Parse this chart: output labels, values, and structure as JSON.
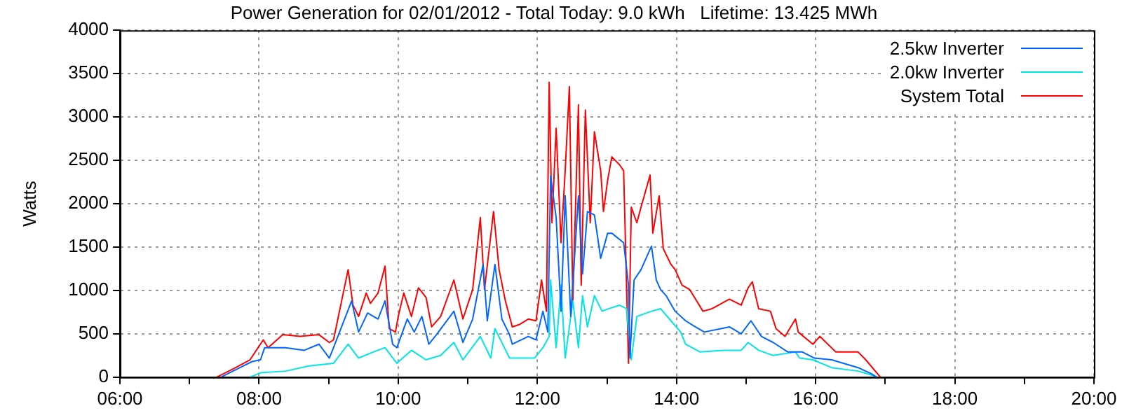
{
  "chart_data": {
    "type": "line",
    "title": "Power Generation for 02/01/2012 - Total Today: 9.0 kWh   Lifetime: 13.425 MWh",
    "ylabel": "Watts",
    "xlim": [
      6,
      20
    ],
    "xticks": [
      {
        "value": 6,
        "label": "06:00"
      },
      {
        "value": 7,
        "label": null
      },
      {
        "value": 8,
        "label": "08:00"
      },
      {
        "value": 9,
        "label": null
      },
      {
        "value": 10,
        "label": "10:00"
      },
      {
        "value": 11,
        "label": null
      },
      {
        "value": 12,
        "label": "12:00"
      },
      {
        "value": 13,
        "label": null
      },
      {
        "value": 14,
        "label": "14:00"
      },
      {
        "value": 15,
        "label": null
      },
      {
        "value": 16,
        "label": "16:00"
      },
      {
        "value": 17,
        "label": null
      },
      {
        "value": 18,
        "label": "18:00"
      },
      {
        "value": 19,
        "label": null
      },
      {
        "value": 20,
        "label": "20:00"
      }
    ],
    "ylim": [
      0,
      4000
    ],
    "yticks": [
      0,
      500,
      1000,
      1500,
      2000,
      2500,
      3000,
      3500,
      4000
    ],
    "grid": true,
    "legend": "top right",
    "series": [
      {
        "name": "2.5kw Inverter",
        "color": "#0066ff",
        "x": [
          7.45,
          7.7,
          7.9,
          8.02,
          8.08,
          8.38,
          8.65,
          8.86,
          9.01,
          9.07,
          9.33,
          9.43,
          9.56,
          9.71,
          9.81,
          9.92,
          9.98,
          10.13,
          10.23,
          10.34,
          10.44,
          10.55,
          10.8,
          10.93,
          11.07,
          11.22,
          11.28,
          11.39,
          11.49,
          11.6,
          11.64,
          11.87,
          11.98,
          12.08,
          12.15,
          12.19,
          12.27,
          12.34,
          12.4,
          12.48,
          12.59,
          12.65,
          12.72,
          12.82,
          12.91,
          13.01,
          13.07,
          13.24,
          13.31,
          13.33,
          13.39,
          13.49,
          13.64,
          13.71,
          13.77,
          13.85,
          13.98,
          14.13,
          14.27,
          14.4,
          14.76,
          14.93,
          15.07,
          15.22,
          15.39,
          15.6,
          15.81,
          15.98,
          16.23,
          16.61,
          16.8,
          16.88
        ],
        "values": [
          0,
          100,
          180,
          200,
          340,
          340,
          310,
          380,
          220,
          340,
          880,
          520,
          740,
          670,
          880,
          380,
          340,
          670,
          520,
          700,
          380,
          490,
          760,
          400,
          670,
          1300,
          650,
          1300,
          670,
          490,
          380,
          470,
          430,
          760,
          520,
          2320,
          1840,
          760,
          2090,
          700,
          2090,
          1190,
          1910,
          1870,
          1370,
          1660,
          1660,
          1550,
          1060,
          220,
          1120,
          1240,
          1510,
          1120,
          1010,
          940,
          760,
          650,
          580,
          520,
          580,
          500,
          650,
          470,
          400,
          290,
          290,
          220,
          200,
          110,
          40,
          0
        ]
      },
      {
        "name": "2.0kw Inverter",
        "color": "#00e5e5",
        "x": [
          7.87,
          8.02,
          8.38,
          8.72,
          9.07,
          9.28,
          9.43,
          9.64,
          9.81,
          9.98,
          10.19,
          10.4,
          10.61,
          10.8,
          10.93,
          11.18,
          11.33,
          11.39,
          11.6,
          11.96,
          12.08,
          12.17,
          12.19,
          12.27,
          12.34,
          12.4,
          12.51,
          12.59,
          12.65,
          12.72,
          12.82,
          12.93,
          13.03,
          13.18,
          13.28,
          13.35,
          13.43,
          13.64,
          13.77,
          13.92,
          14.06,
          14.13,
          14.34,
          14.69,
          14.93,
          15.03,
          15.18,
          15.39,
          15.71,
          15.77,
          15.96,
          16.23,
          16.61,
          16.82,
          16.88
        ],
        "values": [
          0,
          50,
          70,
          130,
          160,
          380,
          220,
          290,
          340,
          160,
          310,
          200,
          250,
          400,
          200,
          470,
          220,
          560,
          220,
          220,
          340,
          470,
          1120,
          340,
          1060,
          220,
          880,
          340,
          940,
          580,
          940,
          760,
          790,
          830,
          790,
          200,
          700,
          760,
          790,
          650,
          520,
          380,
          290,
          310,
          310,
          400,
          310,
          250,
          290,
          220,
          200,
          110,
          70,
          20,
          0
        ]
      },
      {
        "name": "System Total",
        "color": "#ff0000",
        "x": [
          7.39,
          7.64,
          7.87,
          8.06,
          8.13,
          8.34,
          8.59,
          8.86,
          9.01,
          9.07,
          9.28,
          9.35,
          9.43,
          9.54,
          9.6,
          9.71,
          9.81,
          9.87,
          9.96,
          10.0,
          10.08,
          10.19,
          10.29,
          10.4,
          10.48,
          10.61,
          10.8,
          10.93,
          11.07,
          11.18,
          11.24,
          11.37,
          11.45,
          11.54,
          11.64,
          11.75,
          11.87,
          11.98,
          12.06,
          12.13,
          12.17,
          12.21,
          12.27,
          12.34,
          12.4,
          12.46,
          12.51,
          12.59,
          12.63,
          12.69,
          12.76,
          12.82,
          12.91,
          12.95,
          13.01,
          13.07,
          13.18,
          13.24,
          13.31,
          13.35,
          13.43,
          13.49,
          13.62,
          13.66,
          13.75,
          13.81,
          13.92,
          13.98,
          14.08,
          14.19,
          14.38,
          14.51,
          14.76,
          14.93,
          15.03,
          15.09,
          15.18,
          15.35,
          15.43,
          15.56,
          15.71,
          15.75,
          15.96,
          16.06,
          16.29,
          16.61,
          16.72,
          16.91,
          16.93
        ],
        "values": [
          0,
          100,
          200,
          430,
          340,
          490,
          470,
          490,
          400,
          430,
          1240,
          830,
          700,
          970,
          850,
          970,
          1280,
          560,
          520,
          700,
          970,
          700,
          1030,
          920,
          580,
          700,
          1120,
          670,
          1010,
          1840,
          1010,
          1910,
          1240,
          880,
          580,
          610,
          670,
          650,
          1120,
          760,
          3400,
          1780,
          2870,
          1550,
          2380,
          3350,
          880,
          3140,
          1060,
          3080,
          1780,
          2830,
          2380,
          1910,
          2270,
          2540,
          2450,
          2380,
          160,
          1960,
          1780,
          1960,
          2330,
          1660,
          2090,
          1480,
          1300,
          1240,
          1060,
          1010,
          760,
          790,
          900,
          830,
          1030,
          1100,
          790,
          760,
          560,
          470,
          670,
          520,
          380,
          470,
          290,
          290,
          200,
          20,
          0
        ]
      }
    ]
  }
}
